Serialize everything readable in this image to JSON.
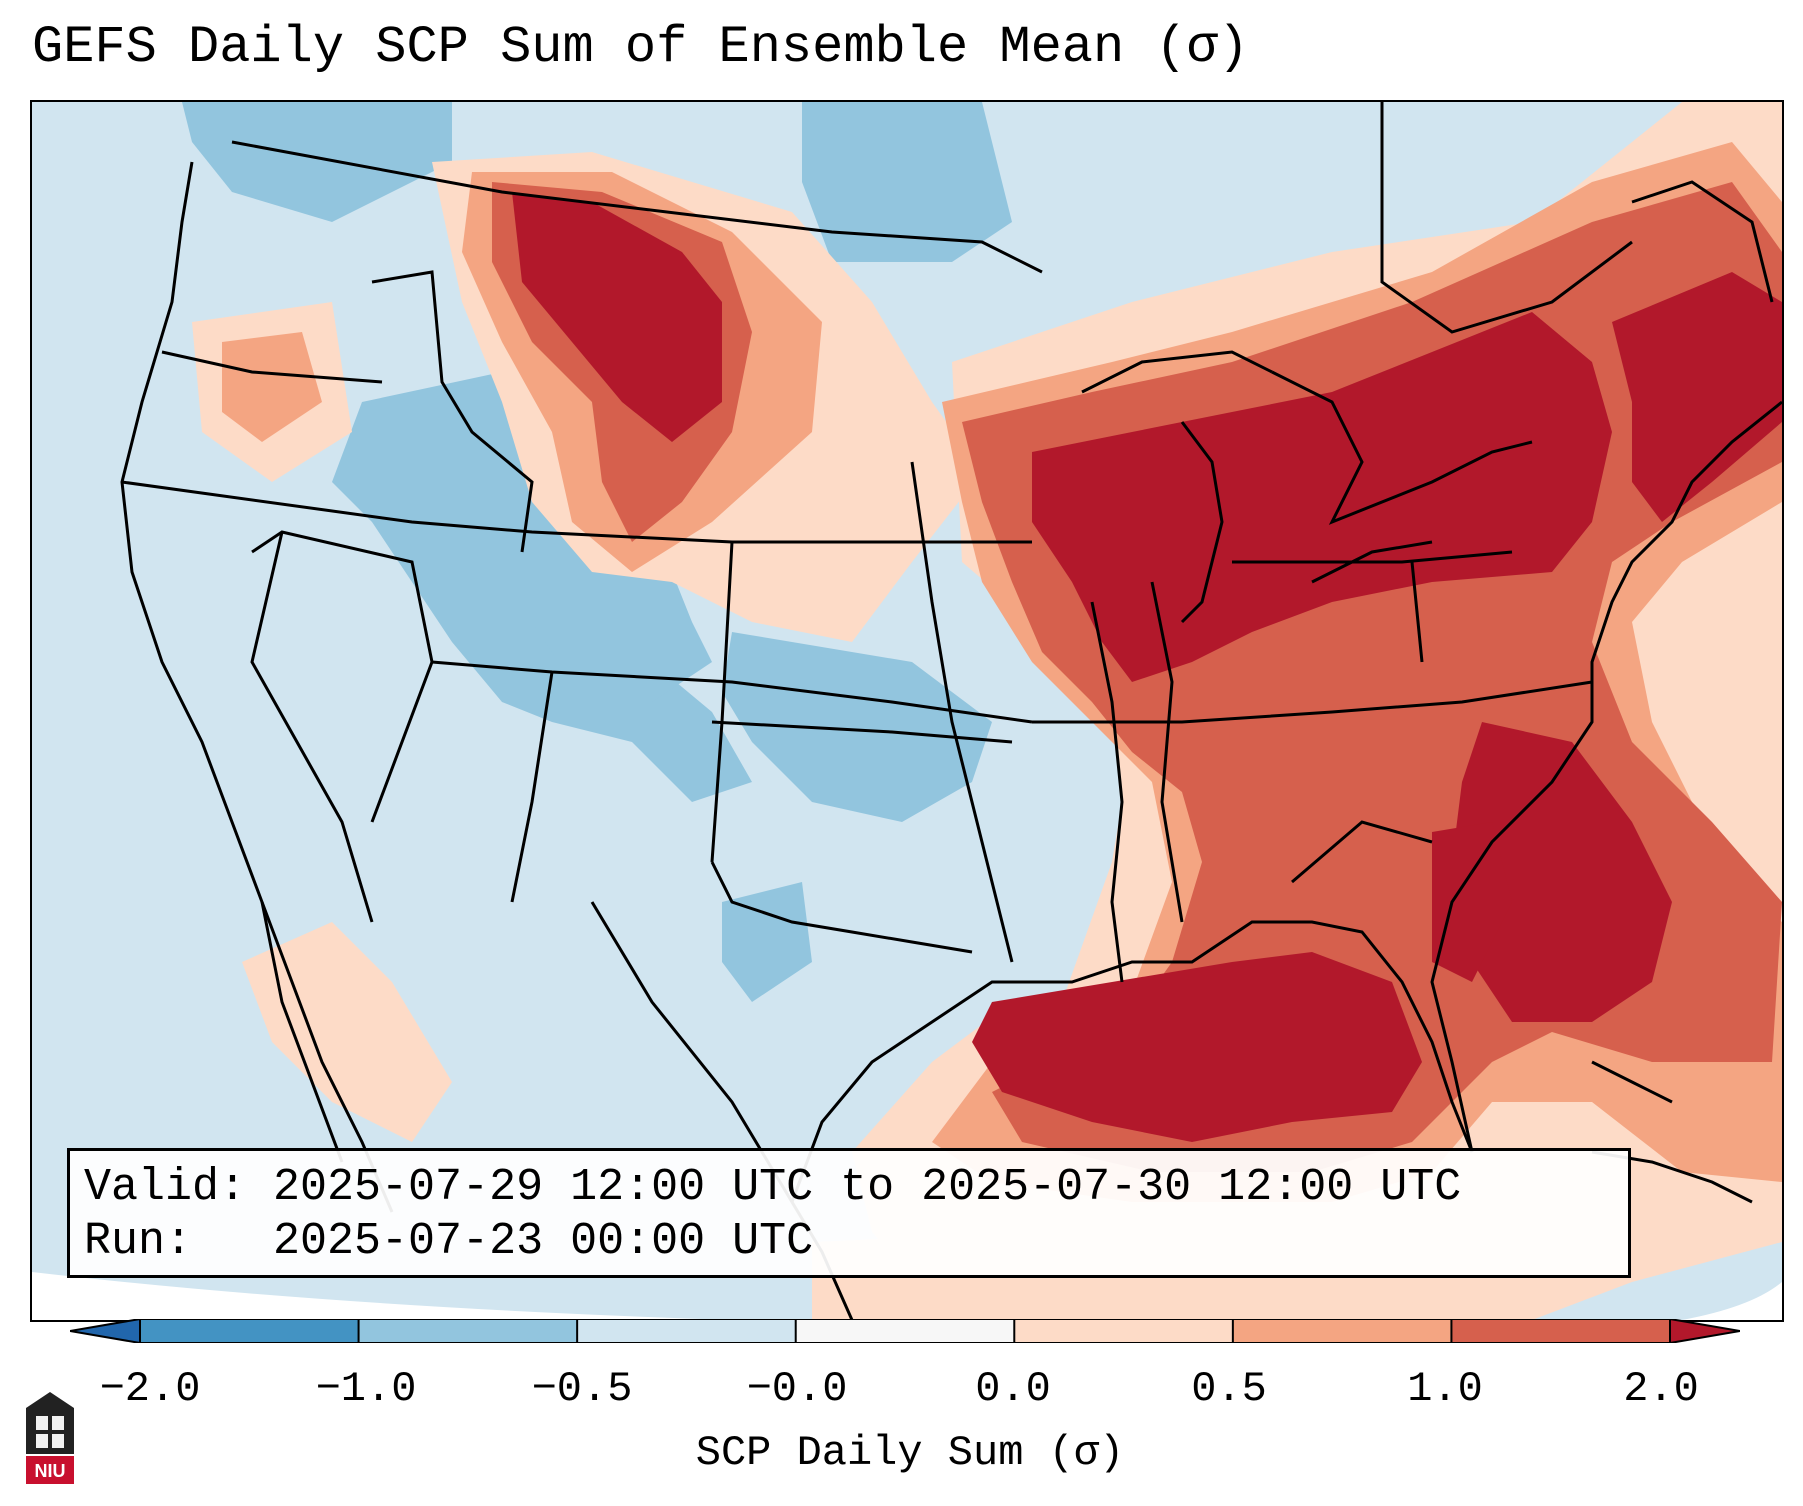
{
  "title": "GEFS Daily SCP Sum of Ensemble Mean (σ)",
  "info": {
    "valid": "Valid: 2025-07-29 12:00 UTC to 2025-07-30 12:00 UTC",
    "run": "Run:   2025-07-23 00:00 UTC"
  },
  "colorbar": {
    "label": "SCP Daily Sum (σ)",
    "ticks": [
      "−2.0",
      "−1.0",
      "−0.5",
      "−0.0",
      "0.0",
      "0.5",
      "1.0",
      "2.0"
    ],
    "colors": [
      "#2166ac",
      "#4393c3",
      "#92c5de",
      "#d1e5f0",
      "#f7f7f7",
      "#fddbc7",
      "#f4a582",
      "#d6604d",
      "#b2182b"
    ]
  },
  "map": {
    "projection_note": "Lambert conformal CONUS",
    "background_color": "#d1e5f0",
    "field_regions": [
      {
        "name": "northern-rockies-high",
        "level": "#b2182b"
      },
      {
        "name": "great-lakes-ohio-high",
        "level": "#b2182b"
      },
      {
        "name": "northeast-high",
        "level": "#b2182b"
      },
      {
        "name": "gulf-coast-high",
        "level": "#b2182b"
      },
      {
        "name": "southeast-atlantic-high",
        "level": "#b2182b"
      },
      {
        "name": "great-basin-low",
        "level": "#92c5de"
      },
      {
        "name": "colorado-low",
        "level": "#92c5de"
      },
      {
        "name": "plains-low",
        "level": "#92c5de"
      }
    ]
  },
  "logo": {
    "text": "NIU"
  }
}
